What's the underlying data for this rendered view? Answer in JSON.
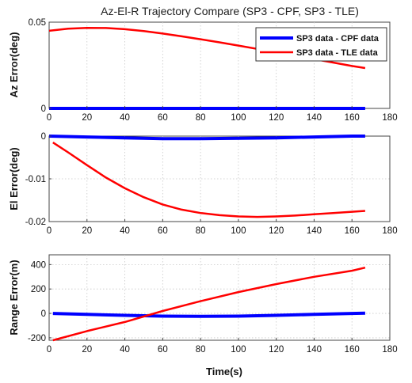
{
  "title": "Az-El-R Trajectory Compare (SP3 - CPF, SP3 - TLE)",
  "xlabel": "Time(s)",
  "colors": {
    "cpf": "#0000ff",
    "tle": "#ff0000"
  },
  "legend": {
    "placement": "top-right",
    "entries": [
      "SP3 data - CPF data",
      "SP3 data - TLE data"
    ]
  },
  "chart_data": [
    {
      "type": "line",
      "ylabel": "Az Error(deg)",
      "xlim": [
        0,
        180
      ],
      "ylim": [
        0,
        0.05
      ],
      "xticks": [
        0,
        20,
        40,
        60,
        80,
        100,
        120,
        140,
        160,
        180
      ],
      "xtick_labels": [
        "0",
        "20",
        "40",
        "60",
        "80",
        "100",
        "120",
        "140",
        "160",
        "180"
      ],
      "yticks": [
        0,
        0.05
      ],
      "ytick_labels": [
        "0",
        "0.05"
      ],
      "grid": true,
      "series": [
        {
          "name": "SP3 data - CPF data",
          "color": "#0000ff",
          "x": [
            0,
            20,
            40,
            60,
            80,
            100,
            120,
            140,
            160,
            167
          ],
          "y": [
            0.0,
            0.0,
            0.0,
            0.0,
            0.0,
            0.0,
            0.0,
            0.0,
            0.0,
            0.0
          ]
        },
        {
          "name": "SP3 data - TLE data",
          "color": "#ff0000",
          "x": [
            0,
            10,
            20,
            30,
            40,
            50,
            60,
            70,
            80,
            90,
            100,
            110,
            120,
            130,
            140,
            150,
            160,
            167
          ],
          "y": [
            0.045,
            0.0462,
            0.0467,
            0.0466,
            0.0459,
            0.0448,
            0.0434,
            0.0418,
            0.0401,
            0.0383,
            0.0364,
            0.0345,
            0.0326,
            0.0306,
            0.0286,
            0.0266,
            0.0246,
            0.0234
          ]
        }
      ]
    },
    {
      "type": "line",
      "ylabel": "El Error(deg)",
      "xlim": [
        0,
        180
      ],
      "ylim": [
        -0.02,
        0
      ],
      "xticks": [
        0,
        20,
        40,
        60,
        80,
        100,
        120,
        140,
        160,
        180
      ],
      "xtick_labels": [
        "0",
        "20",
        "40",
        "60",
        "80",
        "100",
        "120",
        "140",
        "160",
        "180"
      ],
      "yticks": [
        0,
        -0.01,
        -0.02
      ],
      "ytick_labels": [
        "0",
        "-0.01",
        "-0.02"
      ],
      "grid": true,
      "series": [
        {
          "name": "SP3 data - CPF data",
          "color": "#0000ff",
          "x": [
            0,
            20,
            40,
            60,
            80,
            100,
            120,
            140,
            160,
            167
          ],
          "y": [
            0.0,
            -0.0002,
            -0.0004,
            -0.0006,
            -0.0006,
            -0.0005,
            -0.0004,
            -0.0002,
            0.0,
            0.0
          ]
        },
        {
          "name": "SP3 data - TLE data",
          "color": "#ff0000",
          "x": [
            2,
            10,
            20,
            30,
            40,
            50,
            60,
            70,
            80,
            90,
            100,
            110,
            120,
            130,
            140,
            150,
            160,
            167
          ],
          "y": [
            -0.0015,
            -0.0038,
            -0.0068,
            -0.0097,
            -0.0122,
            -0.0143,
            -0.016,
            -0.0172,
            -0.018,
            -0.0185,
            -0.0188,
            -0.0189,
            -0.0188,
            -0.0186,
            -0.0183,
            -0.018,
            -0.0177,
            -0.0175
          ]
        }
      ]
    },
    {
      "type": "line",
      "ylabel": "Range Error(m)",
      "xlim": [
        0,
        180
      ],
      "ylim": [
        -220,
        480
      ],
      "xticks": [
        0,
        20,
        40,
        60,
        80,
        100,
        120,
        140,
        160,
        180
      ],
      "xtick_labels": [
        "0",
        "20",
        "40",
        "60",
        "80",
        "100",
        "120",
        "140",
        "160",
        "180"
      ],
      "yticks": [
        -200,
        0,
        200,
        400
      ],
      "ytick_labels": [
        "-200",
        "0",
        "200",
        "400"
      ],
      "grid": true,
      "series": [
        {
          "name": "SP3 data - CPF data",
          "color": "#0000ff",
          "x": [
            2,
            20,
            40,
            60,
            80,
            100,
            120,
            140,
            160,
            167
          ],
          "y": [
            0,
            -8,
            -16,
            -22,
            -24,
            -22,
            -16,
            -8,
            0,
            2
          ]
        },
        {
          "name": "SP3 data - TLE data",
          "color": "#ff0000",
          "x": [
            2,
            20,
            40,
            60,
            80,
            100,
            120,
            140,
            160,
            167
          ],
          "y": [
            -220,
            -145,
            -70,
            20,
            100,
            175,
            240,
            300,
            350,
            375
          ]
        }
      ]
    }
  ]
}
